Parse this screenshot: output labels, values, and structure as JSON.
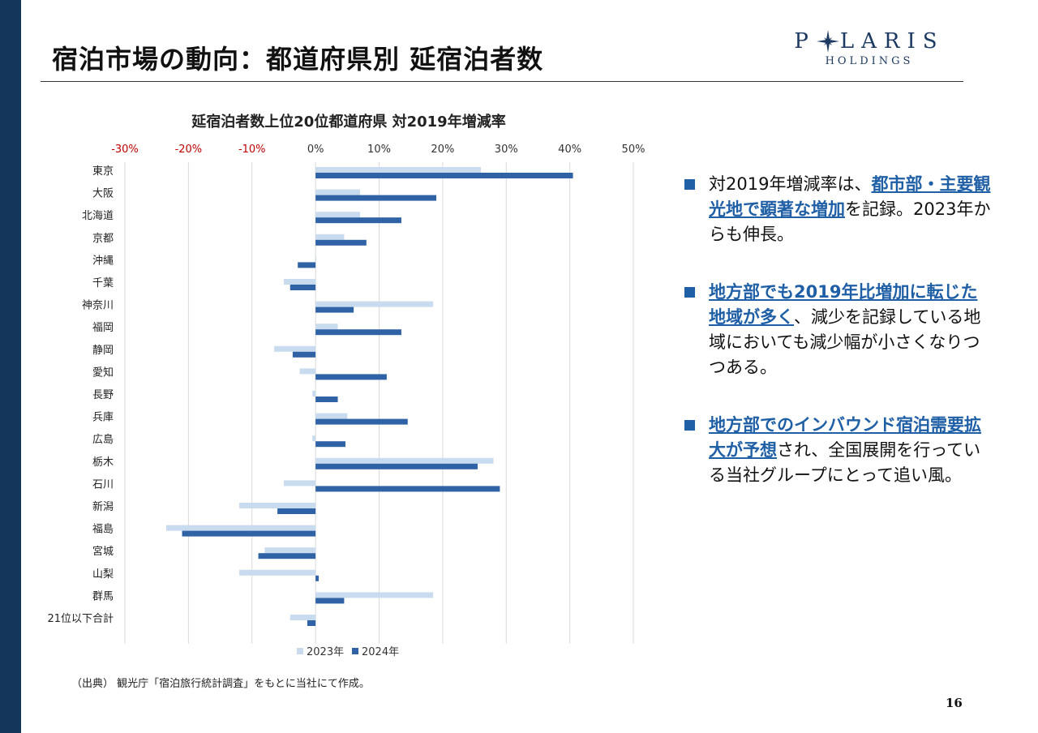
{
  "slide": {
    "title": "宿泊市場の動向：都道府県別 延宿泊者数",
    "logo_main_left": "P",
    "logo_main_right": "LARIS",
    "logo_sub": "HOLDINGS",
    "source": "（出典） 観光庁「宿泊旅行統計調査」をもとに当社にて作成。",
    "page_number": "16"
  },
  "bullets": [
    {
      "parts": [
        {
          "text": "対2019年増減率は、",
          "hl": false
        },
        {
          "text": "都市部・主要観光地で顕著な増加",
          "hl": true
        },
        {
          "text": "を記録。2023年からも伸長。",
          "hl": false
        }
      ]
    },
    {
      "parts": [
        {
          "text": "地方部でも2019年比増加に転じた地域が多く",
          "hl": true
        },
        {
          "text": "、減少を記録している地域においても減少幅が小さくなりつつある。",
          "hl": false
        }
      ]
    },
    {
      "parts": [
        {
          "text": "地方部でのインバウンド宿泊需要拡大が予想",
          "hl": true
        },
        {
          "text": "され、全国展開を行っている当社グループにとって追い風。",
          "hl": false
        }
      ]
    }
  ],
  "colors": {
    "sidebar": "#14365a",
    "series_2023": "#c9dbef",
    "series_2024": "#2f63a6",
    "negative_tick": "#c00000",
    "accent": "#1f5fa6"
  },
  "chart_data": {
    "type": "bar",
    "orientation": "horizontal",
    "title": "延宿泊者数上位20位都道府県 対2019年増減率",
    "categories": [
      "東京",
      "大阪",
      "北海道",
      "京都",
      "沖縄",
      "千葉",
      "神奈川",
      "福岡",
      "静岡",
      "愛知",
      "長野",
      "兵庫",
      "広島",
      "栃木",
      "石川",
      "新潟",
      "福島",
      "宮城",
      "山梨",
      "群馬",
      "21位以下合計"
    ],
    "series": [
      {
        "name": "2023年",
        "values": [
          26,
          7,
          7,
          4.5,
          0,
          -5,
          18.5,
          3.5,
          -6.5,
          -2.5,
          -0.5,
          5,
          -0.5,
          28,
          -5,
          -12,
          -23.5,
          -8,
          -12,
          18.5,
          -4
        ]
      },
      {
        "name": "2024年",
        "values": [
          40.5,
          19,
          13.5,
          8,
          -2.8,
          -4,
          6,
          13.5,
          -3.6,
          11.2,
          3.5,
          14.5,
          4.7,
          25.5,
          29,
          -6,
          -21,
          -9,
          0.5,
          4.5,
          -1.3
        ]
      }
    ],
    "xlim": [
      -30,
      50
    ],
    "xticks": [
      -30,
      -20,
      -10,
      0,
      10,
      20,
      30,
      40,
      50
    ],
    "xtick_labels": [
      "-30%",
      "-20%",
      "-10%",
      "0%",
      "10%",
      "20%",
      "30%",
      "40%",
      "50%"
    ],
    "xaxis_position": "top",
    "grid": true,
    "legend": {
      "position": "bottom",
      "entries": [
        "2023年",
        "2024年"
      ]
    }
  }
}
